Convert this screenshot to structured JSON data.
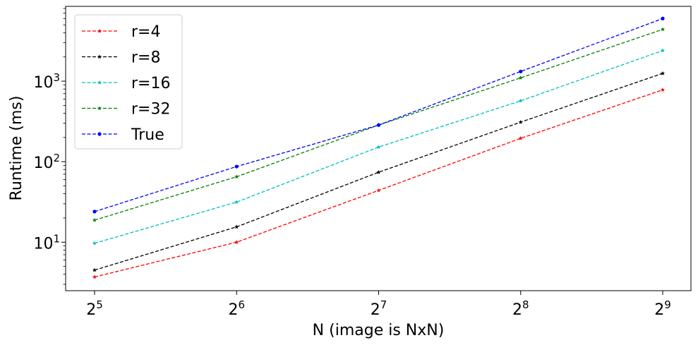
{
  "chart_data": {
    "type": "line",
    "xlabel": "N (image is NxN)",
    "ylabel": "Runtime (ms)",
    "x_scale": "log2",
    "y_scale": "log10",
    "x": [
      32,
      64,
      128,
      256,
      512
    ],
    "x_tick_labels": [
      {
        "base": "2",
        "exp": "5"
      },
      {
        "base": "2",
        "exp": "6"
      },
      {
        "base": "2",
        "exp": "7"
      },
      {
        "base": "2",
        "exp": "8"
      },
      {
        "base": "2",
        "exp": "9"
      }
    ],
    "y_ticks": [
      {
        "value": 10,
        "base": "10",
        "exp": "1"
      },
      {
        "value": 100,
        "base": "10",
        "exp": "2"
      },
      {
        "value": 1000,
        "base": "10",
        "exp": "3"
      }
    ],
    "ylim": [
      2.5,
      8500
    ],
    "legend_position": "top-left",
    "grid": false,
    "series": [
      {
        "name": "r=4",
        "color": "#ff0000",
        "marker": "star",
        "values": [
          3.7,
          10,
          44,
          195,
          780
        ]
      },
      {
        "name": "r=8",
        "color": "#000000",
        "marker": "star",
        "values": [
          4.5,
          15.5,
          74,
          310,
          1250
        ]
      },
      {
        "name": "r=16",
        "color": "#00bfbf",
        "marker": "star",
        "values": [
          9.7,
          31.5,
          152,
          570,
          2400
        ]
      },
      {
        "name": "r=32",
        "color": "#008000",
        "marker": "star",
        "values": [
          18.8,
          65,
          285,
          1100,
          4400
        ]
      },
      {
        "name": "True",
        "color": "#0000ff",
        "marker": "circle",
        "values": [
          24,
          87,
          285,
          1320,
          6000
        ]
      }
    ]
  }
}
